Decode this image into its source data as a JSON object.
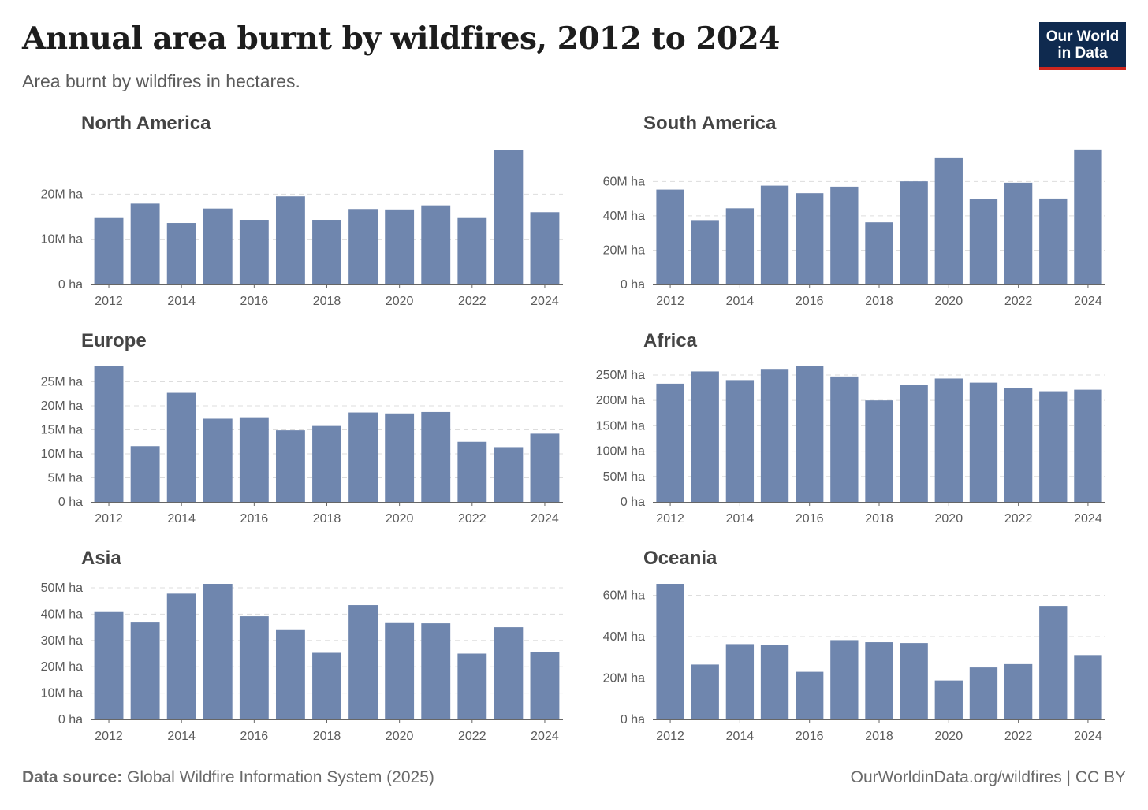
{
  "title": "Annual area burnt by wildfires, 2012 to 2024",
  "subtitle": "Area burnt by wildfires in hectares.",
  "logo": {
    "line1": "Our World",
    "line2": "in Data"
  },
  "footer": {
    "source_label": "Data source:",
    "source_text": " Global Wildfire Information System (2025)",
    "url": "OurWorldinData.org/wildfires | CC BY"
  },
  "colors": {
    "bar": "#6f86ae",
    "grid": "#dddddd",
    "axis": "#666666",
    "text": "#5b5b5b"
  },
  "chart_data": [
    {
      "type": "bar",
      "title": "North America",
      "categories": [
        2012,
        2013,
        2014,
        2015,
        2016,
        2017,
        2018,
        2019,
        2020,
        2021,
        2022,
        2023,
        2024
      ],
      "x_tick_labels": [
        "2012",
        "2014",
        "2016",
        "2018",
        "2020",
        "2022",
        "2024"
      ],
      "values": [
        14.7,
        17.9,
        13.6,
        16.8,
        14.3,
        19.5,
        14.3,
        16.7,
        16.6,
        17.5,
        14.7,
        29.7,
        16.0
      ],
      "unit": "M ha",
      "y_ticks": [
        0,
        10,
        20
      ],
      "y_tick_labels": [
        "0 ha",
        "10M ha",
        "20M ha"
      ],
      "ylim": [
        0,
        30
      ],
      "grid": true
    },
    {
      "type": "bar",
      "title": "South America",
      "categories": [
        2012,
        2013,
        2014,
        2015,
        2016,
        2017,
        2018,
        2019,
        2020,
        2021,
        2022,
        2023,
        2024
      ],
      "x_tick_labels": [
        "2012",
        "2014",
        "2016",
        "2018",
        "2020",
        "2022",
        "2024"
      ],
      "values": [
        55.3,
        37.5,
        44.4,
        57.6,
        53.2,
        57.0,
        36.2,
        60.1,
        74.0,
        49.6,
        59.3,
        50.1,
        78.6
      ],
      "unit": "M ha",
      "y_ticks": [
        0,
        20,
        40,
        60
      ],
      "y_tick_labels": [
        "0 ha",
        "20M ha",
        "40M ha",
        "60M ha"
      ],
      "ylim": [
        0,
        79
      ],
      "grid": true
    },
    {
      "type": "bar",
      "title": "Europe",
      "categories": [
        2012,
        2013,
        2014,
        2015,
        2016,
        2017,
        2018,
        2019,
        2020,
        2021,
        2022,
        2023,
        2024
      ],
      "x_tick_labels": [
        "2012",
        "2014",
        "2016",
        "2018",
        "2020",
        "2022",
        "2024"
      ],
      "values": [
        28.2,
        11.6,
        22.7,
        17.3,
        17.6,
        14.9,
        15.8,
        18.6,
        18.4,
        18.7,
        12.5,
        11.4,
        14.2
      ],
      "unit": "M ha",
      "y_ticks": [
        0,
        5,
        10,
        15,
        20,
        25
      ],
      "y_tick_labels": [
        "0 ha",
        "5M ha",
        "10M ha",
        "15M ha",
        "20M ha",
        "25M ha"
      ],
      "ylim": [
        0,
        28.2
      ],
      "grid": true
    },
    {
      "type": "bar",
      "title": "Africa",
      "categories": [
        2012,
        2013,
        2014,
        2015,
        2016,
        2017,
        2018,
        2019,
        2020,
        2021,
        2022,
        2023,
        2024
      ],
      "x_tick_labels": [
        "2012",
        "2014",
        "2016",
        "2018",
        "2020",
        "2022",
        "2024"
      ],
      "values": [
        233,
        257,
        240,
        262,
        267,
        247,
        200,
        231,
        243,
        235,
        225,
        218,
        221
      ],
      "unit": "M ha",
      "y_ticks": [
        0,
        50,
        100,
        150,
        200,
        250
      ],
      "y_tick_labels": [
        "0 ha",
        "50M ha",
        "100M ha",
        "150M ha",
        "200M ha",
        "250M ha"
      ],
      "ylim": [
        0,
        267
      ],
      "grid": true
    },
    {
      "type": "bar",
      "title": "Asia",
      "categories": [
        2012,
        2013,
        2014,
        2015,
        2016,
        2017,
        2018,
        2019,
        2020,
        2021,
        2022,
        2023,
        2024
      ],
      "x_tick_labels": [
        "2012",
        "2014",
        "2016",
        "2018",
        "2020",
        "2022",
        "2024"
      ],
      "values": [
        40.8,
        36.8,
        47.8,
        51.5,
        39.2,
        34.2,
        25.3,
        43.4,
        36.6,
        36.5,
        25.0,
        35.0,
        25.6
      ],
      "unit": "M ha",
      "y_ticks": [
        0,
        10,
        20,
        30,
        40,
        50
      ],
      "y_tick_labels": [
        "0 ha",
        "10M ha",
        "20M ha",
        "30M ha",
        "40M ha",
        "50M ha"
      ],
      "ylim": [
        0,
        51.5
      ],
      "grid": true
    },
    {
      "type": "bar",
      "title": "Oceania",
      "categories": [
        2012,
        2013,
        2014,
        2015,
        2016,
        2017,
        2018,
        2019,
        2020,
        2021,
        2022,
        2023,
        2024
      ],
      "x_tick_labels": [
        "2012",
        "2014",
        "2016",
        "2018",
        "2020",
        "2022",
        "2024"
      ],
      "values": [
        65.5,
        26.5,
        36.4,
        36.0,
        23.0,
        38.3,
        37.3,
        36.9,
        18.8,
        25.1,
        26.7,
        54.8,
        31.1
      ],
      "unit": "M ha",
      "y_ticks": [
        0,
        20,
        40,
        60
      ],
      "y_tick_labels": [
        "0 ha",
        "20M ha",
        "40M ha",
        "60M ha"
      ],
      "ylim": [
        0,
        65.5
      ],
      "grid": true
    }
  ]
}
